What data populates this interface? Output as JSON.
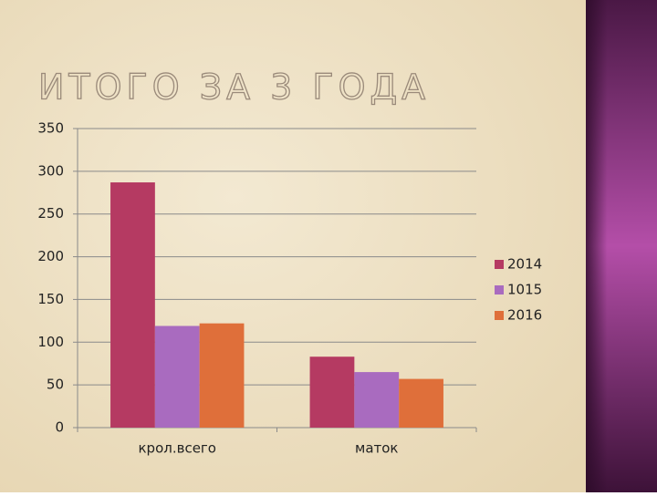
{
  "chart_data": {
    "type": "bar",
    "title": "ИТОГО ЗА 3 ГОДА",
    "categories": [
      "крол.всего",
      "маток"
    ],
    "series": [
      {
        "name": "2014",
        "color": "#b53a62",
        "values": [
          287,
          83
        ]
      },
      {
        "name": "1015",
        "color": "#a96bbf",
        "values": [
          119,
          65
        ]
      },
      {
        "name": "2016",
        "color": "#df6f3a",
        "values": [
          122,
          57
        ]
      }
    ],
    "ylim": [
      0,
      350
    ],
    "yticks": [
      0,
      50,
      100,
      150,
      200,
      250,
      300,
      350
    ],
    "grid": true,
    "legend": "right"
  }
}
